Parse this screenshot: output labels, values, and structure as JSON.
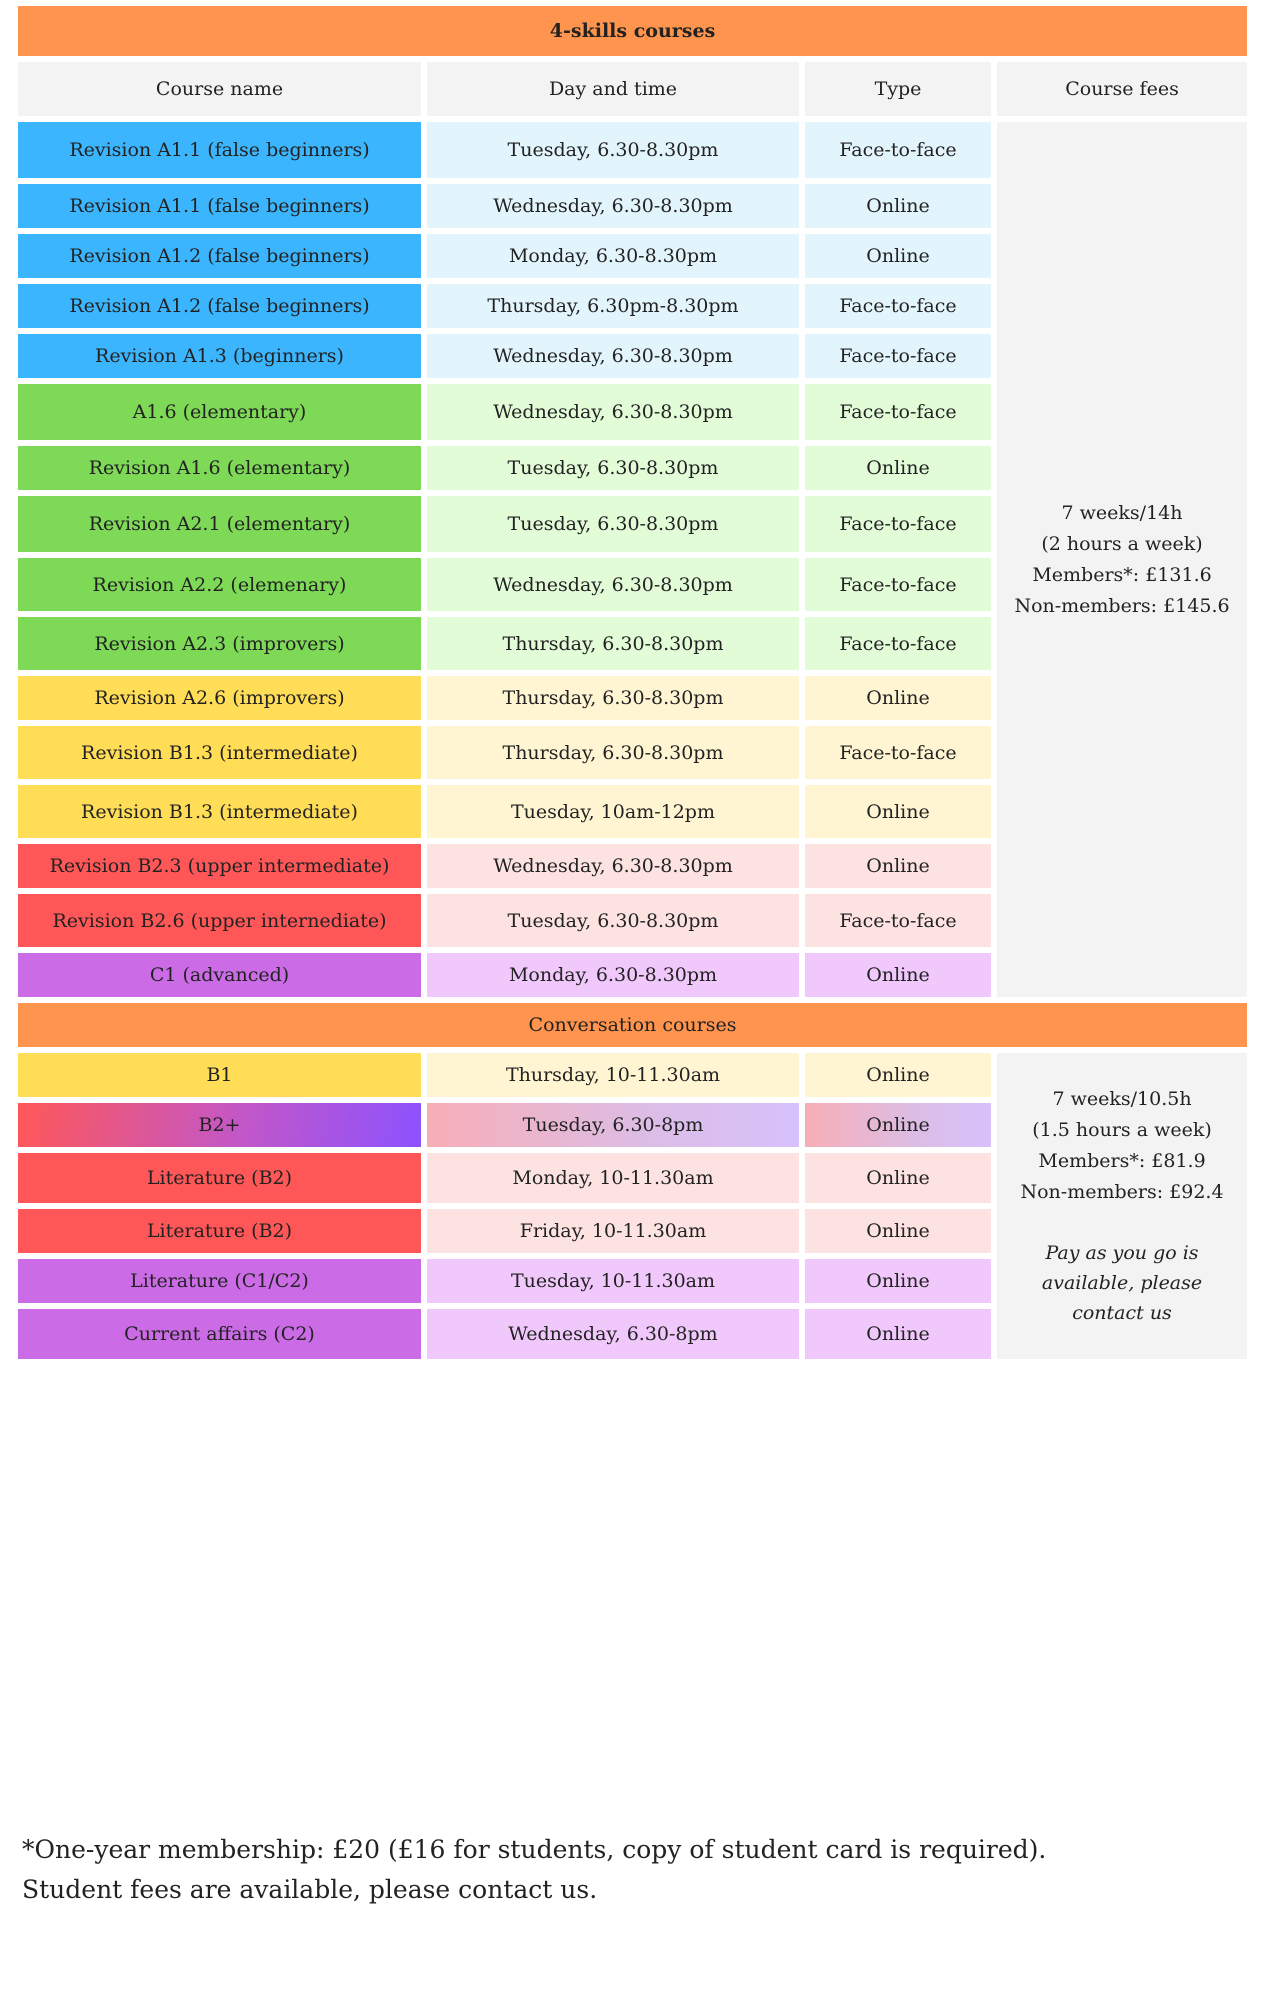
{
  "skills": {
    "title": "4-skills courses",
    "headers": [
      "Course name",
      "Day and time",
      "Type",
      "Course fees"
    ],
    "rows": [
      {
        "name": "Revision A1.1 (false beginners)",
        "time": "Tuesday, 6.30-8.30pm",
        "type": "Face-to-face",
        "color": "blue"
      },
      {
        "name": "Revision A1.1 (false beginners)",
        "time": "Wednesday, 6.30-8.30pm",
        "type": "Online",
        "color": "blue"
      },
      {
        "name": "Revision A1.2 (false beginners)",
        "time": "Monday, 6.30-8.30pm",
        "type": "Online",
        "color": "blue"
      },
      {
        "name": "Revision A1.2 (false beginners)",
        "time": "Thursday, 6.30pm-8.30pm",
        "type": "Face-to-face",
        "color": "blue"
      },
      {
        "name": "Revision A1.3 (beginners)",
        "time": "Wednesday, 6.30-8.30pm",
        "type": "Face-to-face",
        "color": "blue"
      },
      {
        "name": "A1.6 (elementary)",
        "time": "Wednesday, 6.30-8.30pm",
        "type": "Face-to-face",
        "color": "green"
      },
      {
        "name": "Revision A1.6 (elementary)",
        "time": "Tuesday, 6.30-8.30pm",
        "type": "Online",
        "color": "green"
      },
      {
        "name": "Revision A2.1 (elementary)",
        "time": "Tuesday, 6.30-8.30pm",
        "type": "Face-to-face",
        "color": "green"
      },
      {
        "name": "Revision A2.2 (elemenary)",
        "time": "Wednesday, 6.30-8.30pm",
        "type": "Face-to-face",
        "color": "green"
      },
      {
        "name": "Revision A2.3 (improvers)",
        "time": "Thursday, 6.30-8.30pm",
        "type": "Face-to-face",
        "color": "green"
      },
      {
        "name": "Revision A2.6 (improvers)",
        "time": "Thursday, 6.30-8.30pm",
        "type": "Online",
        "color": "yellow"
      },
      {
        "name": "Revision B1.3 (intermediate)",
        "time": "Thursday, 6.30-8.30pm",
        "type": "Face-to-face",
        "color": "yellow"
      },
      {
        "name": "Revision B1.3 (intermediate)",
        "time": "Tuesday, 10am-12pm",
        "type": "Online",
        "color": "yellow"
      },
      {
        "name": "Revision B2.3 (upper intermediate)",
        "time": "Wednesday, 6.30-8.30pm",
        "type": "Online",
        "color": "red"
      },
      {
        "name": "Revision B2.6 (upper internediate)",
        "time": "Tuesday, 6.30-8.30pm",
        "type": "Face-to-face",
        "color": "red"
      },
      {
        "name": "C1 (advanced)",
        "time": "Monday, 6.30-8.30pm",
        "type": "Online",
        "color": "purple"
      }
    ],
    "fees": [
      "7 weeks/14h",
      "(2 hours a week)",
      "Members*: £131.6",
      "Non-members: £145.6"
    ]
  },
  "conversation": {
    "title": "Conversation courses",
    "rows": [
      {
        "name": "B1",
        "time": "Thursday, 10-11.30am",
        "type": "Online",
        "color": "yellow"
      },
      {
        "name": "B2+",
        "time": "Tuesday, 6.30-8pm",
        "type": "Online",
        "color": "grad"
      },
      {
        "name": "Literature (B2)",
        "time": "Monday, 10-11.30am",
        "type": "Online",
        "color": "red"
      },
      {
        "name": "Literature (B2)",
        "time": "Friday, 10-11.30am",
        "type": "Online",
        "color": "red"
      },
      {
        "name": "Literature (C1/C2)",
        "time": "Tuesday, 10-11.30am",
        "type": "Online",
        "color": "purple"
      },
      {
        "name": "Current affairs (C2)",
        "time": "Wednesday, 6.30-8pm",
        "type": "Online",
        "color": "purple"
      }
    ],
    "fees": [
      "7 weeks/10.5h",
      "(1.5 hours a week)",
      "Members*: £81.9",
      "Non-members: £92.4"
    ],
    "note": [
      "Pay as you go is",
      "available, please",
      "contact us"
    ]
  },
  "footnote": {
    "line1": "*One-year membership: £20 (£16 for students, copy of student card is required).",
    "line2": "Student fees are available, please contact us."
  }
}
